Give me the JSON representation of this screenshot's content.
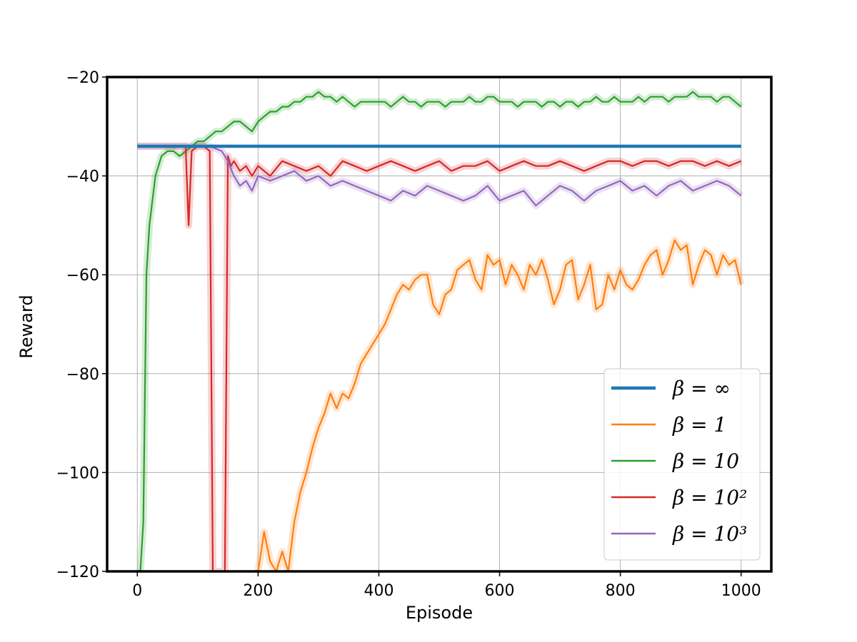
{
  "chart_data": {
    "type": "line",
    "xlabel": "Episode",
    "ylabel": "Reward",
    "xlim": [
      -50,
      1050
    ],
    "ylim": [
      -120,
      -20
    ],
    "x_ticks": [
      0,
      200,
      400,
      600,
      800,
      1000
    ],
    "y_ticks": [
      -120,
      -100,
      -80,
      -60,
      -40,
      -20
    ],
    "x_tick_labels": [
      "0",
      "200",
      "400",
      "600",
      "800",
      "1000"
    ],
    "y_tick_labels": [
      "−120",
      "−100",
      "−80",
      "−60",
      "−40",
      "−20"
    ],
    "grid": true,
    "legend_position": "lower-right",
    "series": [
      {
        "name": "β = ∞",
        "color": "#1f77b4",
        "x": [
          0,
          1000
        ],
        "y": [
          -34,
          -34
        ]
      },
      {
        "name": "β = 1",
        "color": "#ff7f0e",
        "x": [
          200,
          210,
          220,
          230,
          240,
          250,
          260,
          270,
          280,
          290,
          300,
          310,
          320,
          330,
          340,
          350,
          360,
          370,
          380,
          390,
          400,
          410,
          420,
          430,
          440,
          450,
          460,
          470,
          480,
          490,
          500,
          510,
          520,
          530,
          540,
          550,
          560,
          570,
          580,
          590,
          600,
          610,
          620,
          630,
          640,
          650,
          660,
          670,
          680,
          690,
          700,
          710,
          720,
          730,
          740,
          750,
          760,
          770,
          780,
          790,
          800,
          810,
          820,
          830,
          840,
          850,
          860,
          870,
          880,
          890,
          900,
          910,
          920,
          930,
          940,
          950,
          960,
          970,
          980,
          990,
          1000
        ],
        "y": [
          -120,
          -112,
          -118,
          -120,
          -116,
          -120,
          -110,
          -104,
          -100,
          -95,
          -91,
          -88,
          -84,
          -87,
          -84,
          -85,
          -82,
          -78,
          -76,
          -74,
          -72,
          -70,
          -67,
          -64,
          -62,
          -63,
          -61,
          -60,
          -60,
          -66,
          -68,
          -64,
          -63,
          -59,
          -58,
          -57,
          -61,
          -63,
          -56,
          -58,
          -57,
          -62,
          -58,
          -60,
          -63,
          -58,
          -60,
          -57,
          -61,
          -66,
          -63,
          -58,
          -57,
          -65,
          -62,
          -58,
          -67,
          -66,
          -60,
          -63,
          -59,
          -62,
          -63,
          -61,
          -58,
          -56,
          -55,
          -60,
          -57,
          -53,
          -55,
          -54,
          -62,
          -58,
          -55,
          -56,
          -60,
          -56,
          -58,
          -57,
          -62
        ]
      },
      {
        "name": "β = 10",
        "color": "#2ca02c",
        "x": [
          0,
          5,
          10,
          15,
          20,
          25,
          30,
          35,
          40,
          50,
          60,
          70,
          80,
          90,
          100,
          110,
          120,
          130,
          140,
          150,
          160,
          170,
          180,
          190,
          200,
          210,
          220,
          230,
          240,
          250,
          260,
          270,
          280,
          290,
          300,
          310,
          320,
          330,
          340,
          350,
          360,
          370,
          380,
          390,
          400,
          410,
          420,
          430,
          440,
          450,
          460,
          470,
          480,
          490,
          500,
          510,
          520,
          530,
          540,
          550,
          560,
          570,
          580,
          590,
          600,
          610,
          620,
          630,
          640,
          650,
          660,
          670,
          680,
          690,
          700,
          710,
          720,
          730,
          740,
          750,
          760,
          770,
          780,
          790,
          800,
          810,
          820,
          830,
          840,
          850,
          860,
          870,
          880,
          890,
          900,
          910,
          920,
          930,
          940,
          950,
          960,
          970,
          980,
          990,
          1000
        ],
        "y": [
          -120,
          -120,
          -110,
          -60,
          -50,
          -45,
          -40,
          -38,
          -36,
          -35,
          -35,
          -36,
          -35,
          -34,
          -33,
          -33,
          -32,
          -31,
          -31,
          -30,
          -29,
          -29,
          -30,
          -31,
          -29,
          -28,
          -27,
          -27,
          -26,
          -26,
          -25,
          -25,
          -24,
          -24,
          -23,
          -24,
          -24,
          -25,
          -24,
          -25,
          -26,
          -25,
          -25,
          -25,
          -25,
          -25,
          -26,
          -25,
          -24,
          -25,
          -25,
          -26,
          -25,
          -25,
          -25,
          -26,
          -25,
          -25,
          -25,
          -24,
          -25,
          -25,
          -24,
          -24,
          -25,
          -25,
          -25,
          -26,
          -25,
          -25,
          -25,
          -26,
          -25,
          -25,
          -26,
          -25,
          -25,
          -26,
          -25,
          -25,
          -24,
          -25,
          -25,
          -24,
          -25,
          -25,
          -25,
          -24,
          -25,
          -24,
          -24,
          -24,
          -25,
          -24,
          -24,
          -24,
          -23,
          -24,
          -24,
          -24,
          -25,
          -24,
          -24,
          -25,
          -26
        ]
      },
      {
        "name": "β = 10²",
        "color": "#d62728",
        "x": [
          0,
          50,
          80,
          85,
          90,
          100,
          110,
          120,
          125,
          130,
          135,
          140,
          145,
          150,
          155,
          160,
          170,
          180,
          190,
          200,
          220,
          240,
          260,
          280,
          300,
          320,
          340,
          360,
          380,
          400,
          420,
          440,
          460,
          480,
          500,
          520,
          540,
          560,
          580,
          600,
          620,
          640,
          660,
          680,
          700,
          720,
          740,
          760,
          780,
          800,
          820,
          840,
          860,
          880,
          900,
          920,
          940,
          960,
          980,
          1000
        ],
        "y": [
          -34,
          -34,
          -34,
          -50,
          -35,
          -34,
          -34,
          -35,
          -120,
          -120,
          -120,
          -120,
          -120,
          -36,
          -38,
          -37,
          -39,
          -38,
          -40,
          -38,
          -40,
          -37,
          -38,
          -39,
          -38,
          -40,
          -37,
          -38,
          -39,
          -38,
          -37,
          -38,
          -39,
          -38,
          -37,
          -39,
          -38,
          -38,
          -37,
          -39,
          -38,
          -37,
          -38,
          -38,
          -37,
          -38,
          -39,
          -38,
          -37,
          -37,
          -38,
          -37,
          -37,
          -38,
          -37,
          -37,
          -38,
          -37,
          -38,
          -37
        ]
      },
      {
        "name": "β = 10³",
        "color": "#9467bd",
        "x": [
          0,
          50,
          100,
          120,
          140,
          150,
          160,
          170,
          180,
          190,
          200,
          220,
          240,
          260,
          280,
          300,
          320,
          340,
          360,
          380,
          400,
          420,
          440,
          460,
          480,
          500,
          520,
          540,
          560,
          580,
          600,
          620,
          640,
          660,
          680,
          700,
          720,
          740,
          760,
          780,
          800,
          820,
          840,
          860,
          880,
          900,
          920,
          940,
          960,
          980,
          1000
        ],
        "y": [
          -34,
          -34,
          -34,
          -34,
          -35,
          -37,
          -40,
          -42,
          -41,
          -43,
          -40,
          -41,
          -40,
          -39,
          -41,
          -40,
          -42,
          -41,
          -42,
          -43,
          -44,
          -45,
          -43,
          -44,
          -42,
          -43,
          -44,
          -45,
          -44,
          -42,
          -45,
          -44,
          -43,
          -46,
          -44,
          -42,
          -43,
          -45,
          -43,
          -42,
          -41,
          -43,
          -42,
          -44,
          -42,
          -41,
          -43,
          -42,
          -41,
          -42,
          -44
        ]
      }
    ]
  }
}
